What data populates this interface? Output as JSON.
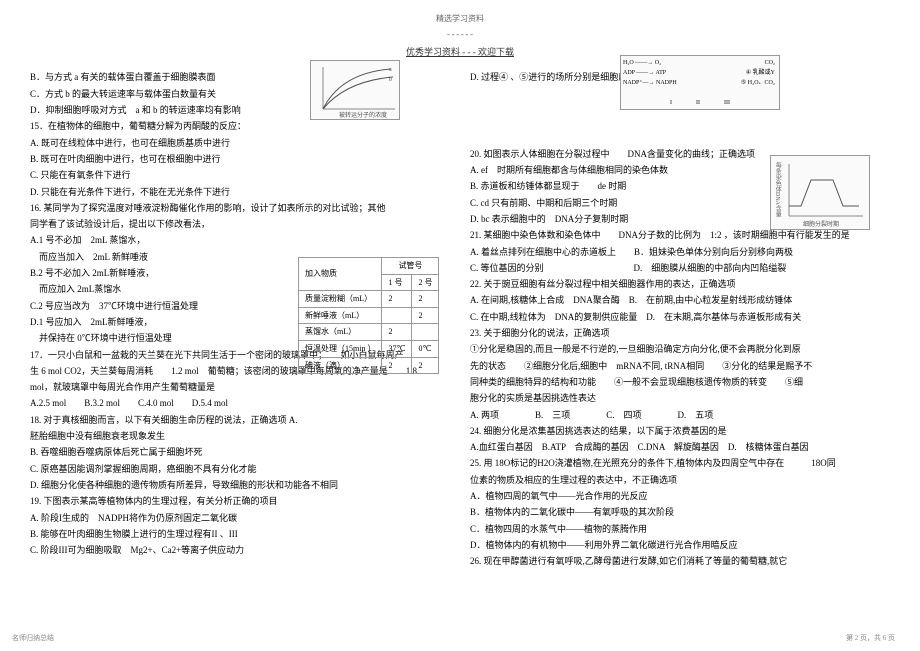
{
  "header": {
    "top": "精选学习资料",
    "dashes": "- - - - - -",
    "main": "优秀学习资料 - - - 欢迎下载"
  },
  "left_lines": [
    "B．与方式 a 有关的载体蛋白覆盖于细胞膜表面",
    "C．方式 b 的最大转运速率与载体蛋白数量有关",
    "D．抑制细胞呼吸对方式　a 和 b 的转运速率均有影响",
    "15．在植物体的细胞中，葡萄糖分解为丙酮酸的反应：",
    "A. 既可在线粒体中进行，也可在细胞质基质中进行",
    "B. 既可在叶肉细胞中进行，也可在根细胞中进行",
    "C. 只能在有氧条件下进行",
    "D. 只能在有光条件下进行，不能在无光条件下进行",
    "16. 某同学为了探究温度对唾液淀粉酶催化作用的影响，设计了如表所示的对比试验；其他",
    "同学看了该试验设计后，提出以下修改看法，",
    "A.1 号不必加　2mL 蒸馏水，",
    "　而应当加入　2mL 新鲜唾液",
    "B.2 号不必加入 2mL新鲜唾液，",
    "　而应加入 2mL蒸馏水",
    "C.2 号应当改为　37℃环境中进行恒温处理",
    "D.1 号应加入　2mL新鲜唾液，",
    "　并保持在 0℃环境中进行恒温处理",
    "17．一只小白鼠和一盆栽的天兰葵在光下共同生活于一个密闭的玻璃罩中；　　如小白鼠每周产",
    "生 6 mol CO2，天兰葵每周消耗　　1.2 mol　葡萄糖；该密闭的玻璃罩中每周氧的净产量是　　1.8",
    "mol，就玻璃罩中每周光合作用产生葡萄糖量是",
    "A.2.5 mol　　B.3.2 mol　　C.4.0 mol　　D.5.4 mol",
    "18. 对于真核细胞而言，以下有关细胞生命历程的说法，正确选项 A.",
    "胚胎细胞中没有细胞衰老现象发生",
    "B. 吞噬细胞吞噬病原体后死亡属于细胞坏死",
    "C. 原癌基因能调剂掌握细胞周期，癌细胞不具有分化才能",
    "D. 细胞分化使各种细胞的遗传物质有所差异，导致细胞的形状和功能各不相同",
    "19. 下图表示某高等植物体内的生理过程，有关分析正确的项目",
    "A. 阶段I生成的　NADPH将作为仍原剂固定二氧化碳",
    "B. 能够在叶肉细胞生物膜上进行的生理过程有II  、III",
    "C. 阶段III可为细胞吸取　Mg2+、Ca2+等离子供应动力"
  ],
  "right_lines_top": [
    "D. 过程④ 、⑤进行的场所分别是细胞质基质和线粒体基质"
  ],
  "right_lines": [
    "20. 如图表示人体细胞在分裂过程中　　DNA含量变化的曲线；正确选项",
    "A. ef　时期所有细胞都含与体细胞相同的染色体数",
    "B. 赤道板和纺锤体都显现于　　de 时期",
    "C. cd 只有前期、中期和后期三个时期",
    "D. bc 表示细胞中的　DNA分子复制时期",
    "21. 某细胞中染色体数和染色体中　　DNA分子数的比例为　1:2 ，该时期细胞中有行能发生的是",
    "A. 着丝点排列在细胞中心的赤道板上　　B．姐妹染色单体分别向后分别移向两极",
    "C. 等位基因的分别　　　　　　　　　　D.　细胞膜从细胞的中部向内凹陷缢裂",
    "22. 关于豌豆细胞有丝分裂过程中相关细胞器作用的表达，正确选项",
    " A. 在间期,核糖体上合成　DNA聚合酶　B.　在前期,由中心粒发星射线形成纺锤体",
    " C. 在中期,线粒体为　DNA的复制供应能量　D.　在末期,高尔基体与赤道板形成有关",
    "23. 关于细胞分化的说法，正确选项",
    "①分化是稳固的,而且一般是不行逆的,一旦细胞沿确定方向分化,便不会再脱分化到原",
    "先的状态　　②细胞分化后,细胞中　mRNA不同, tRNA相同　　③分化的结果是赐予不",
    "同种类的细胞特异的结构和功能　　④一般不会显现细胞核遗传物质的转变　　⑤细",
    "胞分化的实质是基因挑选性表达",
    "A. 两项　　　　B.　三项　　　　C.　四项　　　　D.　五项",
    "24. 细胞分化是浓集基因挑选表达的结果，以下属于浓费基因的是",
    "A.血红蛋白基因　B.ATP　合成酶的基因　C.DNA　解旋酶基因　D.　核糖体蛋白基因",
    " 25. 用 18O标记的H2O浇灌植物,在光照充分的条件下,植物体内及四周空气中存在　　　18O同",
    "位素的物质及相应的生理过程的表达中，不正确选项",
    " A．植物四周的氧气中——光合作用的光反应",
    " B．植物体内的二氧化碳中——有氧呼吸的其次阶段",
    " C．植物四周的水蒸气中——植物的蒸腾作用",
    " D．植物体内的有机物中——利用外界二氧化碳进行光合作用暗反应",
    "26. 现在甲醇菌进行有氧呼吸,乙酵母菌进行发酵,如它们消耗了等量的葡萄糖,就它"
  ],
  "table": {
    "headers": [
      "加入物质",
      "试管号"
    ],
    "sub_headers": [
      "1 号",
      "2 号"
    ],
    "rows": [
      [
        "质量淀粉糊（mL）",
        "2",
        "2"
      ],
      [
        "新鲜唾液（mL）",
        "",
        "2"
      ],
      [
        "蒸馏水（mL）",
        "2",
        ""
      ],
      [
        "恒温处理（15min ）",
        "37℃",
        "0℃"
      ],
      [
        "碘液（滴）",
        "2",
        "2"
      ]
    ]
  },
  "chart1_labels": {
    "x": "被转运分子的浓度",
    "y": "转运速率",
    "curve_a": "a",
    "curve_b": "b"
  },
  "diagram_text": {
    "l1": "H₂O ——→ O₂",
    "l2": "ADP ——→ ATP",
    "l3": "NADP⁺—→ NADPH",
    "co2": "CO₂",
    "x": "X",
    "c3": "C₃",
    "c5": "(CH₂O) C₅",
    "y": "④ 乳酸或Y",
    "h2oco2": "⑤ H₂O、CO₂",
    "roman": "I　　　　II　　　　III"
  },
  "chart2_labels": {
    "y": "每条染色体DNA含量",
    "x": "细胞分裂时期",
    "pts": "a b c d e f"
  },
  "footer_left": "名师归纳总结",
  "footer_right": "第 2 页，共 6 页"
}
